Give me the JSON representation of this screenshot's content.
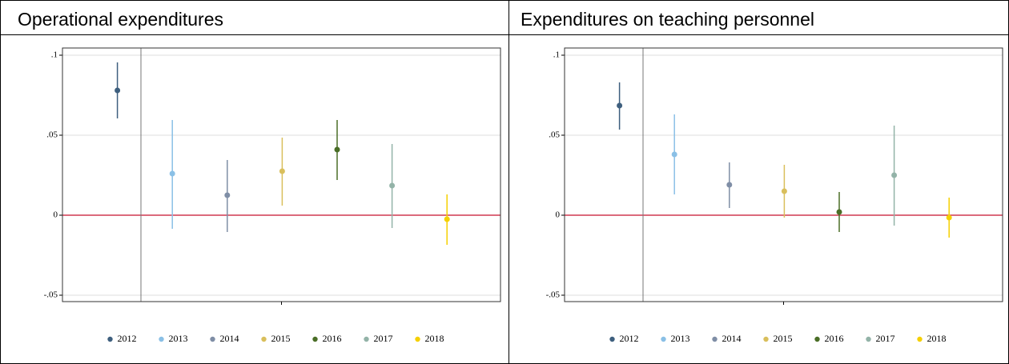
{
  "chart_data": [
    {
      "type": "errorbar",
      "title": "Operational expenditures",
      "ylim": [
        -0.054,
        0.1045
      ],
      "yticks": [
        {
          "value": -0.05,
          "label": "-.05"
        },
        {
          "value": 0,
          "label": "0"
        },
        {
          "value": 0.05,
          "label": ".05"
        },
        {
          "value": 0.1,
          "label": ".1"
        }
      ],
      "grid": true,
      "hline": 0,
      "hline_color": "#c8102e",
      "series": [
        {
          "name": "2012",
          "color": "#3e5f7e",
          "values": [
            0.078
          ],
          "lower": [
            0.0605
          ],
          "upper": [
            0.0955
          ]
        },
        {
          "name": "2013",
          "color": "#8ac0e6",
          "values": [
            0.026
          ],
          "lower": [
            -0.0085
          ],
          "upper": [
            0.0595
          ]
        },
        {
          "name": "2014",
          "color": "#7f8ea6",
          "values": [
            0.0125
          ],
          "lower": [
            -0.0105
          ],
          "upper": [
            0.0345
          ]
        },
        {
          "name": "2015",
          "color": "#d9bf5c",
          "values": [
            0.0275
          ],
          "lower": [
            0.006
          ],
          "upper": [
            0.0485
          ]
        },
        {
          "name": "2016",
          "color": "#4a6e27",
          "values": [
            0.041
          ],
          "lower": [
            0.022
          ],
          "upper": [
            0.0595
          ]
        },
        {
          "name": "2017",
          "color": "#93b3a8",
          "values": [
            0.0185
          ],
          "lower": [
            -0.008
          ],
          "upper": [
            0.0445
          ]
        },
        {
          "name": "2018",
          "color": "#f5d000",
          "values": [
            -0.0025
          ],
          "lower": [
            -0.0185
          ],
          "upper": [
            0.013
          ]
        }
      ]
    },
    {
      "type": "errorbar",
      "title": "Expenditures on teaching personnel",
      "ylim": [
        -0.054,
        0.1045
      ],
      "yticks": [
        {
          "value": -0.05,
          "label": "-.05"
        },
        {
          "value": 0,
          "label": "0"
        },
        {
          "value": 0.05,
          "label": ".05"
        },
        {
          "value": 0.1,
          "label": ".1"
        }
      ],
      "grid": true,
      "hline": 0,
      "hline_color": "#c8102e",
      "series": [
        {
          "name": "2012",
          "color": "#3e5f7e",
          "values": [
            0.0685
          ],
          "lower": [
            0.0535
          ],
          "upper": [
            0.083
          ]
        },
        {
          "name": "2013",
          "color": "#8ac0e6",
          "values": [
            0.038
          ],
          "lower": [
            0.013
          ],
          "upper": [
            0.063
          ]
        },
        {
          "name": "2014",
          "color": "#7f8ea6",
          "values": [
            0.019
          ],
          "lower": [
            0.0045
          ],
          "upper": [
            0.033
          ]
        },
        {
          "name": "2015",
          "color": "#d9bf5c",
          "values": [
            0.015
          ],
          "lower": [
            -0.0015
          ],
          "upper": [
            0.0315
          ]
        },
        {
          "name": "2016",
          "color": "#4a6e27",
          "values": [
            0.002
          ],
          "lower": [
            -0.0105
          ],
          "upper": [
            0.0145
          ]
        },
        {
          "name": "2017",
          "color": "#93b3a8",
          "values": [
            0.025
          ],
          "lower": [
            -0.0065
          ],
          "upper": [
            0.056
          ]
        },
        {
          "name": "2018",
          "color": "#f5d000",
          "values": [
            -0.0015
          ],
          "lower": [
            -0.014
          ],
          "upper": [
            0.011
          ]
        }
      ]
    }
  ]
}
